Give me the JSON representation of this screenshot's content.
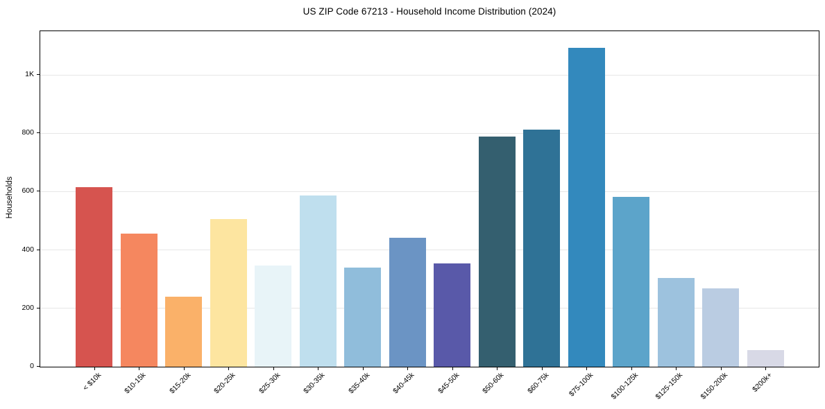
{
  "figure": {
    "title": "US ZIP Code 67213 - Household Income Distribution (2024)",
    "y_axis_label": "Households",
    "background_color": "#ffffff",
    "spine_color": "#000000",
    "gridline_color": "#e6e6e6"
  },
  "chart_data": {
    "type": "bar",
    "title": "US ZIP Code 67213 - Household Income Distribution (2024)",
    "xlabel": "",
    "ylabel": "Households",
    "ylim": [
      0,
      1150
    ],
    "grid": "horizontal",
    "legend": "none",
    "x_tick_rotation_deg": 45,
    "categories": [
      "< $10k",
      "$10-15k",
      "$15-20k",
      "$20-25k",
      "$25-30k",
      "$30-35k",
      "$35-40k",
      "$40-45k",
      "$45-50k",
      "$50-60k",
      "$60-75k",
      "$75-100k",
      "$100-125k",
      "$125-150k",
      "$150-200k",
      "$200k+"
    ],
    "values": [
      616,
      457,
      240,
      507,
      347,
      586,
      339,
      442,
      355,
      789,
      813,
      1092,
      582,
      304,
      268,
      58
    ],
    "bar_colors": [
      "#d6544f",
      "#f5875f",
      "#fab169",
      "#fde5a0",
      "#e8f4f8",
      "#bfdfee",
      "#90bddb",
      "#6b94c4",
      "#5959a9",
      "#345f6f",
      "#2f7296",
      "#3389bd",
      "#5ca4ca",
      "#9dc2de",
      "#bacce2",
      "#d8d9e6"
    ],
    "y_ticks": [
      {
        "value": 0,
        "label": "0"
      },
      {
        "value": 200,
        "label": "200"
      },
      {
        "value": 400,
        "label": "400"
      },
      {
        "value": 600,
        "label": "600"
      },
      {
        "value": 800,
        "label": "800"
      },
      {
        "value": 1000,
        "label": "1K"
      }
    ]
  }
}
